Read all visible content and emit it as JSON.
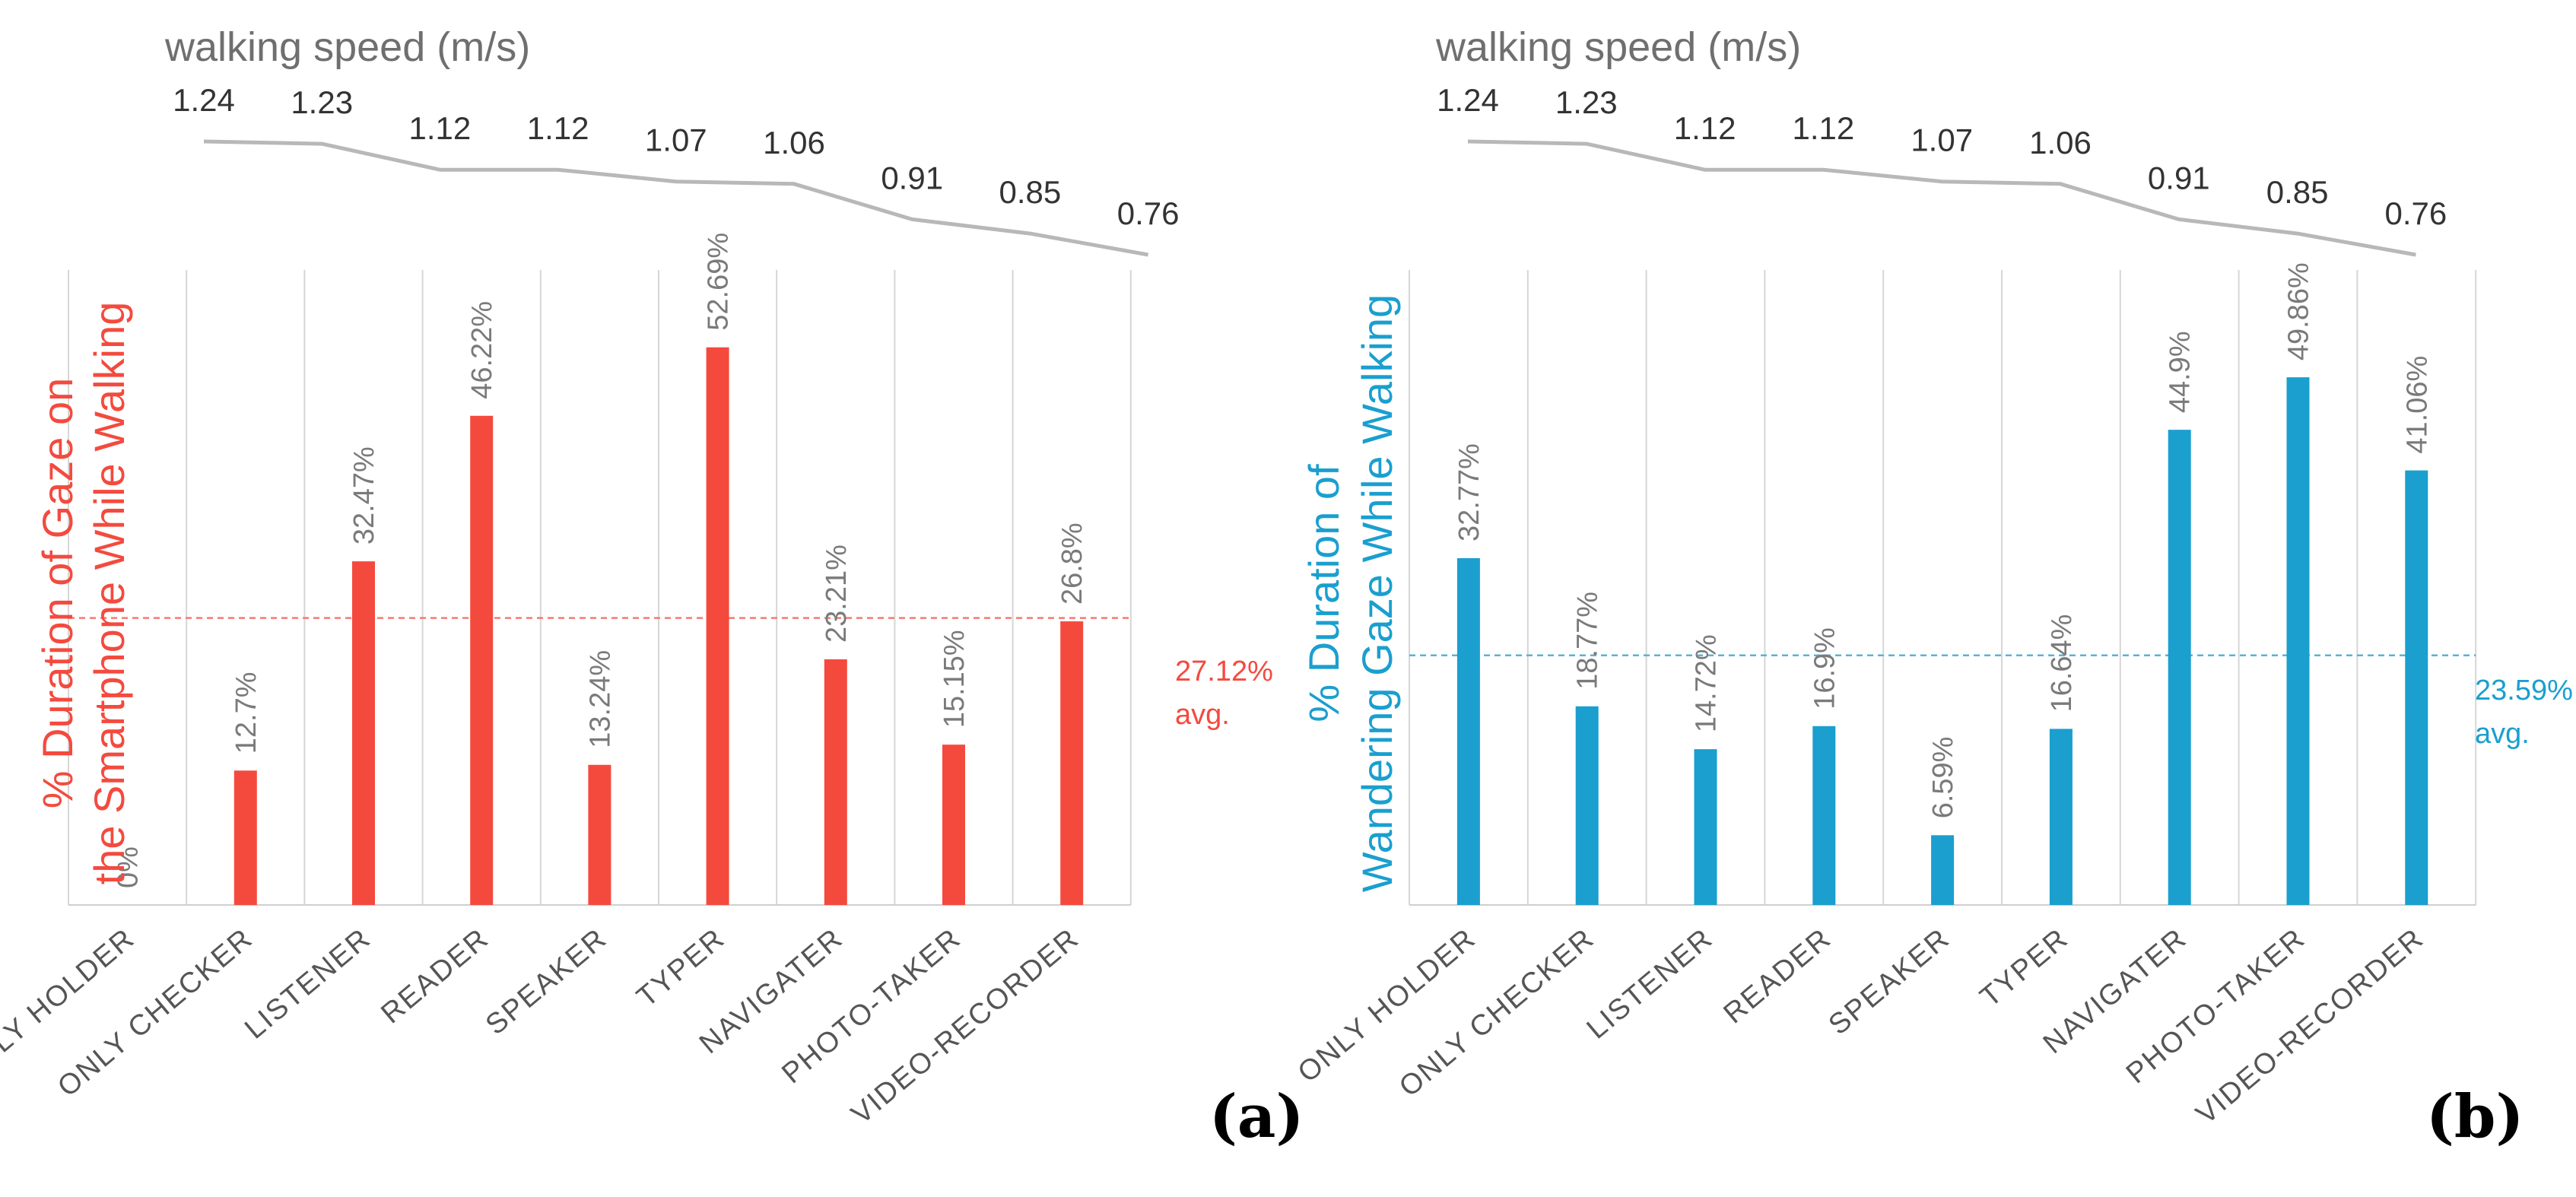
{
  "chart_data": [
    {
      "panel_label": "(a)",
      "type": "bar",
      "title": "walking speed (m/s)",
      "ylabel_lines": [
        "% Duration of Gaze on",
        "the Smartphone While Walking"
      ],
      "categories": [
        "ONLY HOLDER",
        "ONLY CHECKER",
        "LISTENER",
        "READER",
        "SPEAKER",
        "TYPER",
        "NAVIGATER",
        "PHOTO-TAKER",
        "VIDEO-RECORDER"
      ],
      "values": [
        0,
        12.7,
        32.47,
        46.22,
        13.24,
        52.69,
        23.21,
        15.15,
        26.8
      ],
      "value_labels": [
        "0%",
        "12.7%",
        "32.47%",
        "46.22%",
        "13.24%",
        "52.69%",
        "23.21%",
        "15.15%",
        "26.8%"
      ],
      "speed_values": [
        1.24,
        1.23,
        1.12,
        1.12,
        1.07,
        1.06,
        0.91,
        0.85,
        0.76
      ],
      "speed_labels": [
        "1.24",
        "1.23",
        "1.12",
        "1.12",
        "1.07",
        "1.06",
        "0.91",
        "0.85",
        "0.76"
      ],
      "avg_value": 27.12,
      "avg_label": "27.12%",
      "avg_suffix": "avg.",
      "ylim": [
        0,
        60
      ],
      "speed_range": [
        0.6,
        1.3
      ],
      "color": "#f44a3e"
    },
    {
      "panel_label": "(b)",
      "type": "bar",
      "title": "walking speed (m/s)",
      "ylabel_lines": [
        "% Duration of",
        "Wandering Gaze While Walking"
      ],
      "categories": [
        "ONLY HOLDER",
        "ONLY CHECKER",
        "LISTENER",
        "READER",
        "SPEAKER",
        "TYPER",
        "NAVIGATER",
        "PHOTO-TAKER",
        "VIDEO-RECORDER"
      ],
      "values": [
        32.77,
        18.77,
        14.72,
        16.9,
        6.59,
        16.64,
        44.9,
        49.86,
        41.06
      ],
      "value_labels": [
        "32.77%",
        "18.77%",
        "14.72%",
        "16.9%",
        "6.59%",
        "16.64%",
        "44.9%",
        "49.86%",
        "41.06%"
      ],
      "speed_values": [
        1.24,
        1.23,
        1.12,
        1.12,
        1.07,
        1.06,
        0.91,
        0.85,
        0.76
      ],
      "speed_labels": [
        "1.24",
        "1.23",
        "1.12",
        "1.12",
        "1.07",
        "1.06",
        "0.91",
        "0.85",
        "0.76"
      ],
      "avg_value": 23.59,
      "avg_label": "23.59%",
      "avg_suffix": "avg.",
      "ylim": [
        0,
        60
      ],
      "speed_range": [
        0.6,
        1.3
      ],
      "color": "#1a9fcf"
    }
  ]
}
